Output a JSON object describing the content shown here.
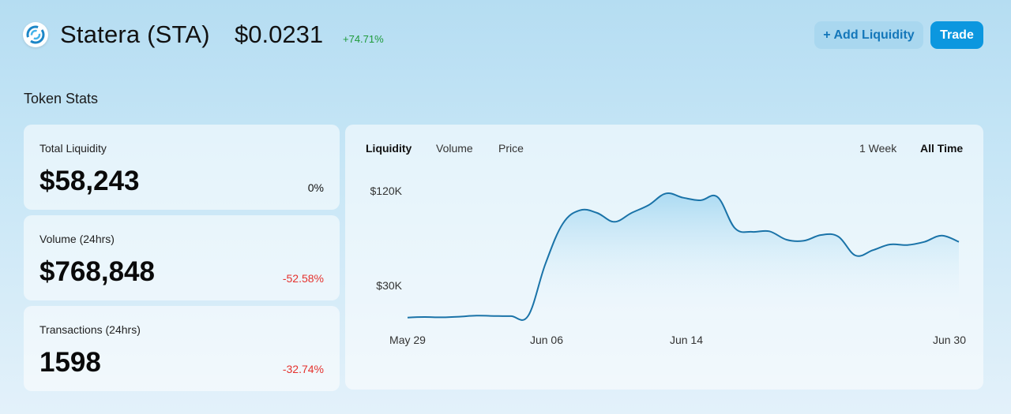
{
  "header": {
    "logo_icon": "statera-logo-icon",
    "token_name": "Statera (STA)",
    "price": "$0.0231",
    "change": "+74.71%",
    "change_color": "#1e9a3a",
    "add_liquidity_label": "+ Add Liquidity",
    "trade_label": "Trade"
  },
  "section_title": "Token Stats",
  "stats": [
    {
      "label": "Total Liquidity",
      "value": "$58,243",
      "change": "0%"
    },
    {
      "label": "Volume (24hrs)",
      "value": "$768,848",
      "change": "-52.58%"
    },
    {
      "label": "Transactions (24hrs)",
      "value": "1598",
      "change": "-32.74%"
    }
  ],
  "chart": {
    "tabs": [
      "Liquidity",
      "Volume",
      "Price"
    ],
    "active_tab": "Liquidity",
    "ranges": [
      "1 Week",
      "All Time"
    ],
    "active_range": "All Time"
  },
  "colors": {
    "accent": "#0c97df",
    "line": "#1a73a8",
    "negative": "#e5322e",
    "positive": "#1e9a3a"
  },
  "chart_data": {
    "type": "area",
    "title": "",
    "xlabel": "",
    "ylabel": "",
    "x_tick_labels": [
      "May 29",
      "Jun 06",
      "Jun 14",
      "Jun 30"
    ],
    "y_tick_labels": [
      "$120K",
      "$30K"
    ],
    "x_start": "2021-05-29",
    "x": [
      "2021-05-29",
      "2021-05-30",
      "2021-05-31",
      "2021-06-01",
      "2021-06-02",
      "2021-06-03",
      "2021-06-04",
      "2021-06-05",
      "2021-06-06",
      "2021-06-07",
      "2021-06-08",
      "2021-06-09",
      "2021-06-10",
      "2021-06-11",
      "2021-06-12",
      "2021-06-13",
      "2021-06-14",
      "2021-06-15",
      "2021-06-16",
      "2021-06-17",
      "2021-06-18",
      "2021-06-19",
      "2021-06-20",
      "2021-06-21",
      "2021-06-22",
      "2021-06-23",
      "2021-06-24",
      "2021-06-25",
      "2021-06-26",
      "2021-06-27",
      "2021-06-28",
      "2021-06-29",
      "2021-06-30"
    ],
    "values": [
      1000,
      1500,
      1200,
      1800,
      2800,
      2500,
      2300,
      2600,
      52000,
      90000,
      103000,
      100500,
      92000,
      100500,
      108000,
      119000,
      115000,
      112500,
      115500,
      86000,
      82500,
      83000,
      75000,
      74000,
      79500,
      78000,
      60000,
      65000,
      70500,
      70000,
      73000,
      79000,
      73000
    ],
    "ylim": [
      0,
      140000
    ],
    "grid": false,
    "legend": "none",
    "series": [
      {
        "values": [
          1000,
          1500,
          1200,
          1800,
          2800,
          2500,
          2300,
          2600,
          52000,
          90000,
          103000,
          100500,
          92000,
          100500,
          108000,
          119000,
          115000,
          112500,
          115500,
          86000,
          82500,
          83000,
          75000,
          74000,
          79500,
          78000,
          60000,
          65000,
          70500,
          70000,
          73000,
          79000,
          73000
        ]
      }
    ]
  }
}
